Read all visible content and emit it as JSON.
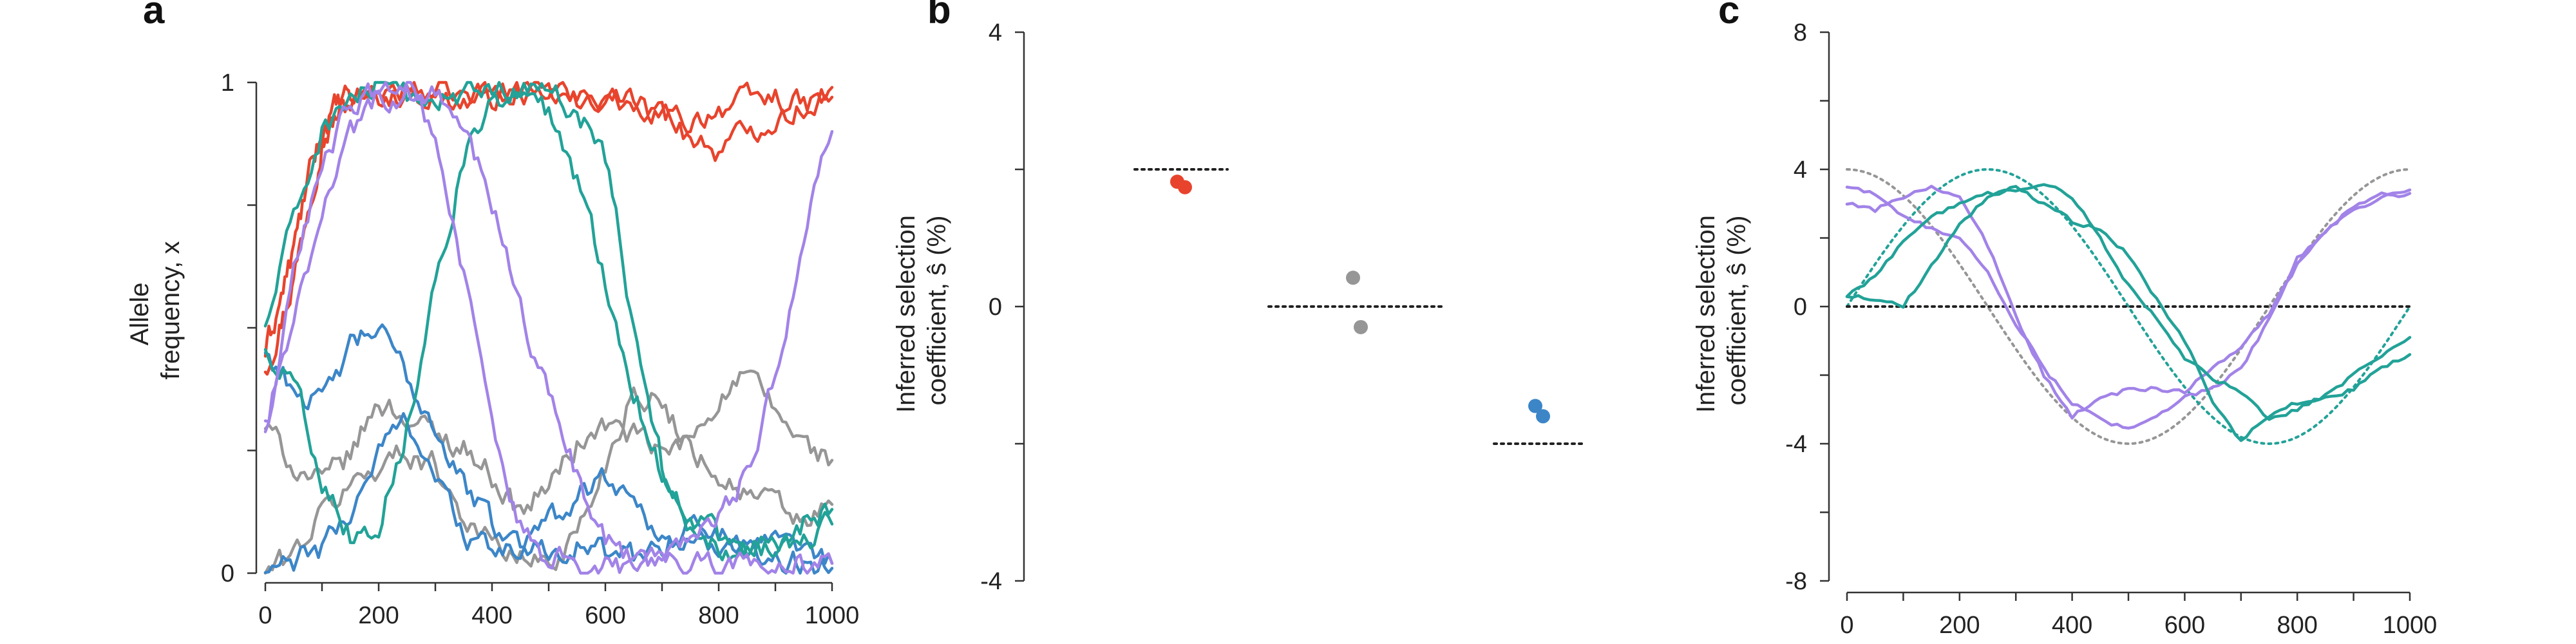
{
  "colors": {
    "red": "#E8442D",
    "gray": "#969696",
    "blue": "#3C86C8",
    "teal": "#22A298",
    "purple": "#A283E8",
    "black": "#222222"
  },
  "chart_data": [
    {
      "panel": "a",
      "type": "line",
      "ylabel_lines": [
        "Allele",
        "frequency, x"
      ],
      "xlim": [
        0,
        1000
      ],
      "ylim": [
        0,
        1
      ],
      "xticks": [
        "0",
        "200",
        "400",
        "600",
        "800",
        "1000"
      ],
      "yticks": [
        "0",
        "1"
      ],
      "series": [
        {
          "color": "red",
          "x": [
            0,
            25,
            50,
            75,
            100,
            125,
            150,
            200,
            250,
            300,
            350,
            400,
            450,
            500,
            550,
            600,
            650,
            700,
            750,
            800,
            850,
            900,
            950,
            1000
          ],
          "y": [
            0.42,
            0.5,
            0.6,
            0.75,
            0.88,
            0.93,
            0.96,
            0.97,
            0.98,
            0.97,
            0.96,
            0.97,
            0.98,
            0.97,
            0.96,
            0.97,
            0.95,
            0.93,
            0.92,
            0.95,
            0.96,
            0.97,
            0.95,
            0.97
          ]
        },
        {
          "color": "red",
          "x": [
            0,
            25,
            50,
            75,
            100,
            125,
            150,
            200,
            250,
            300,
            350,
            400,
            450,
            500,
            550,
            600,
            650,
            700,
            750,
            800,
            850,
            900,
            950,
            1000
          ],
          "y": [
            0.45,
            0.55,
            0.66,
            0.8,
            0.9,
            0.95,
            0.97,
            0.98,
            0.99,
            0.98,
            0.97,
            0.98,
            0.99,
            0.98,
            0.97,
            0.98,
            0.96,
            0.94,
            0.89,
            0.86,
            0.9,
            0.93,
            0.95,
            0.99
          ]
        },
        {
          "color": "gray",
          "x": [
            0,
            50,
            100,
            150,
            200,
            250,
            300,
            350,
            400,
            450,
            500,
            550,
            600,
            650,
            700,
            750,
            800,
            850,
            900,
            950,
            1000
          ],
          "y": [
            0.3,
            0.22,
            0.18,
            0.24,
            0.35,
            0.32,
            0.28,
            0.26,
            0.2,
            0.12,
            0.18,
            0.26,
            0.3,
            0.28,
            0.24,
            0.27,
            0.36,
            0.4,
            0.33,
            0.26,
            0.23
          ]
        },
        {
          "color": "gray",
          "x": [
            0,
            50,
            100,
            150,
            200,
            250,
            300,
            350,
            400,
            450,
            500,
            550,
            600,
            650,
            700,
            750,
            800,
            850,
            900,
            950,
            1000
          ],
          "y": [
            0.0,
            0.04,
            0.12,
            0.18,
            0.22,
            0.25,
            0.22,
            0.12,
            0.06,
            0.03,
            0.02,
            0.08,
            0.22,
            0.38,
            0.34,
            0.26,
            0.2,
            0.16,
            0.14,
            0.1,
            0.14
          ]
        },
        {
          "color": "blue",
          "x": [
            0,
            50,
            100,
            150,
            200,
            250,
            300,
            350,
            400,
            450,
            500,
            550,
            600,
            650,
            700,
            750,
            800,
            850,
            900,
            950,
            1000
          ],
          "y": [
            0.45,
            0.38,
            0.34,
            0.46,
            0.5,
            0.4,
            0.3,
            0.18,
            0.1,
            0.06,
            0.05,
            0.06,
            0.04,
            0.03,
            0.06,
            0.1,
            0.08,
            0.05,
            0.03,
            0.02,
            0.01
          ]
        },
        {
          "color": "blue",
          "x": [
            0,
            50,
            100,
            150,
            200,
            250,
            300,
            350,
            400,
            450,
            500,
            550,
            600,
            650,
            700,
            750,
            800,
            850,
            900,
            950,
            1000
          ],
          "y": [
            0.0,
            0.02,
            0.05,
            0.12,
            0.25,
            0.32,
            0.2,
            0.08,
            0.04,
            0.05,
            0.1,
            0.16,
            0.2,
            0.15,
            0.08,
            0.05,
            0.06,
            0.08,
            0.05,
            0.03,
            0.02
          ]
        },
        {
          "color": "teal",
          "x": [
            0,
            50,
            100,
            150,
            200,
            250,
            300,
            350,
            400,
            450,
            500,
            550,
            600,
            650,
            700,
            750,
            800,
            850,
            900,
            950,
            1000
          ],
          "y": [
            0.5,
            0.72,
            0.9,
            0.97,
            0.99,
            0.97,
            0.96,
            0.98,
            0.99,
            0.97,
            0.94,
            0.8,
            0.6,
            0.38,
            0.2,
            0.1,
            0.06,
            0.05,
            0.08,
            0.06,
            0.1
          ]
        },
        {
          "color": "teal",
          "x": [
            0,
            50,
            100,
            150,
            200,
            250,
            300,
            350,
            400,
            450,
            500,
            550,
            600,
            650,
            700,
            750,
            800,
            850,
            900,
            950,
            1000
          ],
          "y": [
            0.45,
            0.4,
            0.2,
            0.08,
            0.1,
            0.3,
            0.6,
            0.85,
            0.95,
            0.98,
            0.97,
            0.95,
            0.85,
            0.5,
            0.22,
            0.12,
            0.07,
            0.04,
            0.06,
            0.1,
            0.13
          ]
        },
        {
          "color": "purple",
          "x": [
            0,
            50,
            100,
            150,
            200,
            250,
            300,
            350,
            400,
            450,
            500,
            550,
            600,
            650,
            700,
            750,
            800,
            850,
            900,
            950,
            1000
          ],
          "y": [
            0.28,
            0.6,
            0.85,
            0.95,
            0.98,
            0.99,
            0.97,
            0.9,
            0.75,
            0.55,
            0.35,
            0.2,
            0.08,
            0.03,
            0.02,
            0.01,
            0.02,
            0.02,
            0.01,
            0.02,
            0.02
          ]
        },
        {
          "color": "purple",
          "x": [
            0,
            50,
            100,
            150,
            200,
            250,
            300,
            350,
            400,
            450,
            500,
            550,
            600,
            650,
            700,
            750,
            800,
            850,
            900,
            950,
            1000
          ],
          "y": [
            0.3,
            0.5,
            0.75,
            0.9,
            0.97,
            0.98,
            0.9,
            0.6,
            0.3,
            0.1,
            0.03,
            0.02,
            0.01,
            0.01,
            0.03,
            0.06,
            0.1,
            0.2,
            0.4,
            0.7,
            0.9
          ]
        }
      ]
    },
    {
      "panel": "b",
      "type": "scatter",
      "ylabel_lines": [
        "Inferred selection",
        "coefficient, ŝ (%)"
      ],
      "ylim": [
        -4,
        4
      ],
      "yticks": [
        "-4",
        "0",
        "4"
      ],
      "groups": [
        {
          "color": "red",
          "true_value": 2,
          "values": [
            1.82,
            1.74
          ]
        },
        {
          "color": "gray",
          "true_value": 0,
          "values": [
            0.42,
            -0.3
          ]
        },
        {
          "color": "blue",
          "true_value": -2,
          "values": [
            -1.45,
            -1.6
          ]
        }
      ]
    },
    {
      "panel": "c",
      "type": "line",
      "ylabel_lines": [
        "Inferred selection",
        "coefficient, ŝ (%)"
      ],
      "xlim": [
        0,
        1000
      ],
      "ylim": [
        -8,
        8
      ],
      "xticks": [
        "0",
        "200",
        "400",
        "600",
        "800",
        "1000"
      ],
      "yticks": [
        "-8",
        "-4",
        "0",
        "4",
        "8"
      ],
      "true_curves": [
        {
          "color": "gray",
          "amplitude": 4,
          "period": 1000,
          "phase": 0.25
        },
        {
          "color": "teal",
          "amplitude": 4,
          "period": 1000,
          "phase": 0.0
        },
        {
          "color": "black",
          "constant": 0
        }
      ],
      "series": [
        {
          "color": "purple",
          "x": [
            0,
            50,
            100,
            150,
            200,
            250,
            300,
            350,
            400,
            450,
            500,
            550,
            600,
            650,
            700,
            750,
            800,
            850,
            900,
            950,
            1000
          ],
          "y": [
            3.5,
            3.3,
            2.6,
            2.3,
            2.0,
            1.0,
            -0.5,
            -1.8,
            -2.8,
            -3.3,
            -3.6,
            -3.2,
            -2.6,
            -2.4,
            -1.8,
            -0.4,
            1.4,
            2.2,
            2.8,
            3.2,
            3.3
          ]
        },
        {
          "color": "purple",
          "x": [
            0,
            50,
            100,
            150,
            200,
            250,
            300,
            350,
            400,
            450,
            500,
            550,
            600,
            650,
            700,
            750,
            800,
            850,
            900,
            950,
            1000
          ],
          "y": [
            3.0,
            2.8,
            3.2,
            3.5,
            3.2,
            1.8,
            -0.3,
            -2.0,
            -3.2,
            -2.7,
            -2.4,
            -2.4,
            -2.5,
            -1.8,
            -1.2,
            -0.2,
            1.2,
            2.2,
            2.9,
            3.3,
            3.4
          ]
        },
        {
          "color": "teal",
          "x": [
            0,
            50,
            100,
            150,
            200,
            250,
            300,
            350,
            400,
            450,
            500,
            550,
            600,
            650,
            700,
            750,
            800,
            850,
            900,
            950,
            1000
          ],
          "y": [
            0.3,
            0.2,
            0.0,
            1.2,
            2.4,
            3.2,
            3.5,
            3.0,
            2.5,
            2.2,
            1.5,
            0.2,
            -1.0,
            -2.8,
            -3.9,
            -3.2,
            -2.8,
            -2.7,
            -2.4,
            -1.8,
            -1.4
          ]
        },
        {
          "color": "teal",
          "x": [
            0,
            50,
            100,
            150,
            200,
            250,
            300,
            350,
            400,
            450,
            500,
            550,
            600,
            650,
            700,
            750,
            800,
            850,
            900,
            950,
            1000
          ],
          "y": [
            0.3,
            0.9,
            1.9,
            2.6,
            3.0,
            3.3,
            3.4,
            3.6,
            3.2,
            2.0,
            0.6,
            -0.3,
            -1.5,
            -2.1,
            -2.5,
            -3.3,
            -3.0,
            -2.6,
            -2.0,
            -1.4,
            -0.9
          ]
        }
      ]
    }
  ]
}
